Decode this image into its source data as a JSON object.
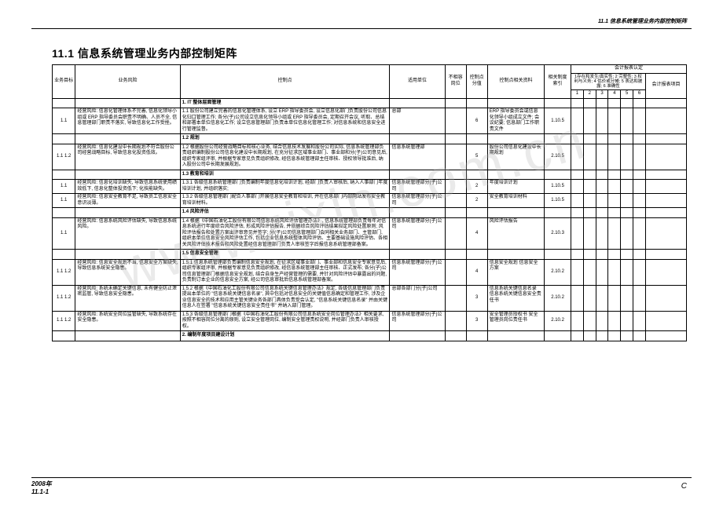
{
  "header_right": "11.1 信息系统管理业务内部控制矩阵",
  "title": "11.1 信息系统管理业务内部控制矩阵",
  "watermark": "www.zixin.com.cn",
  "footer_left_line1": "2008年",
  "footer_left_line2": "11.1-1",
  "footer_right": "C",
  "legend": "1存在和发生/真实性; 2 完整性; 3 权利与义务; 4 估价或分摊; 5 表达和披露; 6 准确性",
  "cols": {
    "c0": "业务目标",
    "c1": "业务风险",
    "c2": "控制点",
    "c3": "适用单位",
    "c4": "不相容岗位",
    "c5": "控制点分值",
    "c6": "控制点相关资料",
    "c7": "相关制度索引",
    "group": "会计报表认定",
    "c_last": "会计报表项目",
    "n1": "1",
    "n2": "2",
    "n3": "3",
    "n4": "4",
    "n5": "5",
    "n6": "6"
  },
  "sections": {
    "s1": "1. IT 整体层面管理",
    "s2": "1.2 规划",
    "s3": "1.3 教育和培训",
    "s4": "1.4 风险评估",
    "s5": "1.5 信息安全管理",
    "s6": "2. 编制年度项目建设计划"
  },
  "rows": [
    {
      "a": "1.1",
      "b": "经营风险: 信息化管理体系不完善, 信息化领导小组或 ERP 指导委员会职责不明确、人员不全, 信息管理部门职责不落实, 导致信息化工作受挫。",
      "c": "1.1 股份公司建立完善的信息化管理体系, 设立 ERP 指导委员会, 设立信息化部门负责股份公司信息化归口管理工作; 各分(子)公司设立信息化领导小组或 ERP 指导委员会, 定期召开会议, 听取、总结和部署本单位信息化工作; 设立信息管理部门负责本单位信息化管理工作; 对信息系统和信息安全进行管理监督。",
      "d": "总部",
      "e": "",
      "f": "6",
      "g": "ERP 指导委员会或信息化领导小组成立文件; 会议纪要; 信息部门工作职责文件",
      "h": "1.10.5"
    },
    {
      "a": "1.1 1.2",
      "b": "经营风险: 信息化建设中长期规划不符合股份公司经营战略目标, 导致信息化投资低效。",
      "c": "1.2 根据股份公司经营战略目标和核心业务, 结合信息技术发展和股份公司实际, 信息系统管理部负责组织编制股份公司信息化建设中长期规划, 在充分征求区域事业部门、事业部和分(子)公司意见后, 组织专家组评审, 并根据专家意见负责组织修改, 经信息系统管理部主任审核、授权领导批准后, 纳入股份公司中长期发展规划。",
      "d": "信息系统管理部",
      "e": "",
      "f": "5",
      "g": "股份公司信息化建设中长期规划",
      "h": "2.10.5"
    },
    {
      "a": "1.1",
      "b": "经营风险: 信息化培训缺失, 导致信息系统使用绩效低下, 信息化整体投资低下; 化技能缺失。",
      "c": "1.3.1 各级信息系统管理部门负责编制年度信息化培训计划, 经部门负责人审核后, 纳入人事部门年度培训计划, 并组织落实;",
      "d": "信息系统管理部分(子)公司",
      "e": "",
      "f": "2",
      "g": "年度培训计划",
      "h": "1.10.5"
    },
    {
      "a": "1.1",
      "b": "经营风险: 信息安全教育不足, 导致员工信息安全意识淡薄。",
      "c": "1.3.2 各级信息管理部门配合人事部门开展信息安全教育和培训, 并在信息部门内部网站发布安全教育培训材料。",
      "d": "信息系统管理部分(子)公司",
      "e": "",
      "f": "2",
      "g": "安全教育培训材料",
      "h": "1.10.5"
    },
    {
      "a": "1.1",
      "b": "经营风险: 信息系统风险评估缺失, 导致信息系统风险。",
      "c": "1.4 根据《中国石油化工股份有限公司信息系统风险评估管理办法》, 信息系统管理部负责每年对信息系统进行年度综合风险评估, 形成风险评估报告, 并依据综合风险评估结果拟定风险处置原则; 风险评估报告和处置方案出评审意见并签字; 分(子)公司信息管理部门会同相关业务部门、主管部门, 组织本单位信息安全风险评估工作, 包括企业信息系统整体风险评估、主要基础设施风险评估、各相关风险评估技术报告和风险处置经信息管理部门负责人审核签字后报信息系统管理部备案。",
      "d": "信息系统管理部分(子)公司",
      "e": "",
      "f": "4",
      "g": "风险评估报告",
      "h": "2.10.3"
    },
    {
      "a": "1.1 1.2",
      "b": "经营风险: 信息安全规划不当, 信息安全方案缺失, 导致信息系统安全隐患。",
      "c": "1.5.1 信息系统管理部负责编制信息安全规划, 在征求区域事业部门、事业部和信息安全专家意见后, 组织专家组评审, 并根据专家意见负责组织修改, 经信息系统管理部主任审核、正式发布; 各分(子)公司信息管理部门根据信息安全规划, 结合自身生产经营管理的需要, 并针对风险评估中暴露出的问题, 负责制订本企业的信息安全方案, 经公司信息审批后信息系统管理部备案。",
      "d": "信息系统管理部分(子)公司",
      "e": "",
      "f": "4",
      "g": "信息安全规划 信息安全方案",
      "h": "2.10.2"
    },
    {
      "a": "1.1 1.2",
      "b": "经营风险: 系统未确定关键信息, 未有健全防止泄密监管, 导致信息安全隐患。",
      "c": "1.5.2 根据《中国石油化工股份有限公司信息系统关键信息管理办法》规定, 各级信息管理部门负责提出本单位的 \"信息系统关键信息名录\", 其中包括对信息安全的关键值信息确定和管理工作, 涉及企业信息安全的技术和应用主管关键业务各部门具体负责受会认定, \"信息系统关键信息名录\" 并由关键信息人在签署 \"信息系统关键信息安全责任书\" 并纳入部门管理。",
      "d": "总部各部门分(子)公司",
      "e": "",
      "f": "3",
      "g": "信息系统关键信息名录 信息系统关键信息安全责任书",
      "h": "2.10.2"
    },
    {
      "a": "1.1 1.2",
      "b": "经营风险: 系统安全岗位监管缺失, 导致系统存在安全隐患。",
      "c": "1.5.3 各级信息管理部门根据《中国石油化工股份有限公司信息系统安全岗位管理办法》相关要求, 按照不相容岗位分离的原则, 设立安全管理岗位, 编制安全管理责权说明, 并经部门负责人审核授权。",
      "d": "信息系统管理部分(子)公司",
      "e": "",
      "f": "3",
      "g": "安全管理员授权书 安全管理员岗位责任书",
      "h": "2.10.2"
    }
  ]
}
